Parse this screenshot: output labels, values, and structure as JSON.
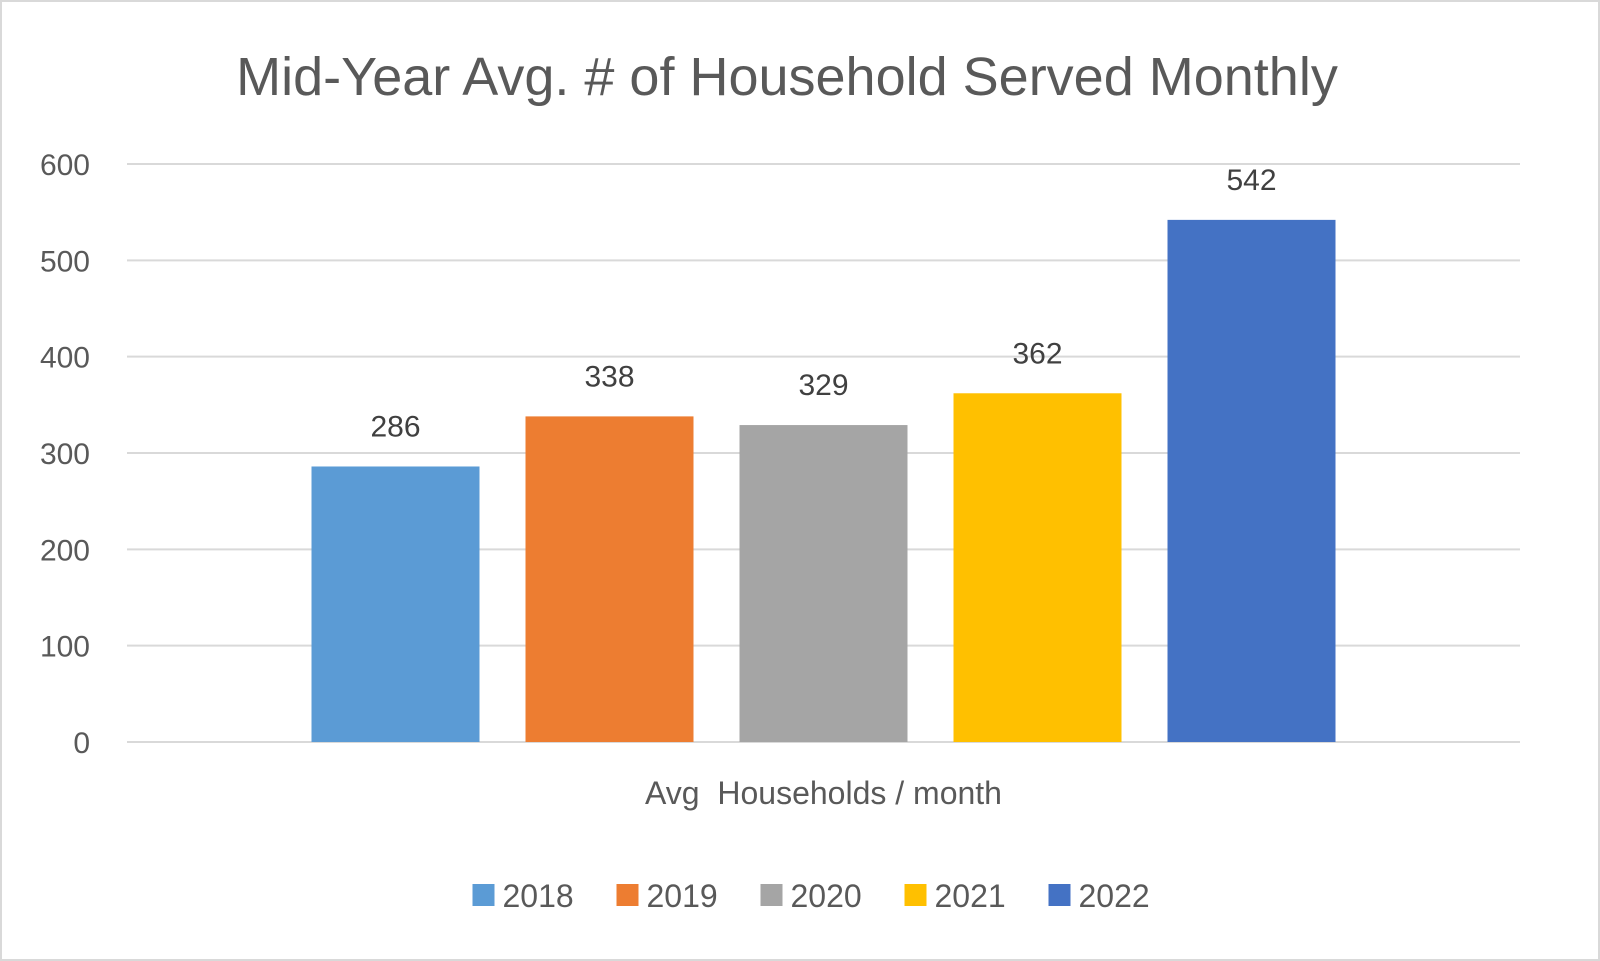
{
  "chart_data": {
    "type": "bar",
    "title": "Mid-Year Avg. # of Household Served Monthly",
    "categories": [
      "Avg  Households / month"
    ],
    "series": [
      {
        "name": "2018",
        "values": [
          286
        ],
        "color": "#5b9bd5"
      },
      {
        "name": "2019",
        "values": [
          338
        ],
        "color": "#ed7d31"
      },
      {
        "name": "2020",
        "values": [
          329
        ],
        "color": "#a5a5a5"
      },
      {
        "name": "2021",
        "values": [
          362
        ],
        "color": "#ffc000"
      },
      {
        "name": "2022",
        "values": [
          542
        ],
        "color": "#4472c4"
      }
    ],
    "ylim": [
      0,
      600
    ],
    "yticks": [
      0,
      100,
      200,
      300,
      400,
      500,
      600
    ],
    "grid": true,
    "legend_position": "bottom",
    "data_labels": true
  }
}
